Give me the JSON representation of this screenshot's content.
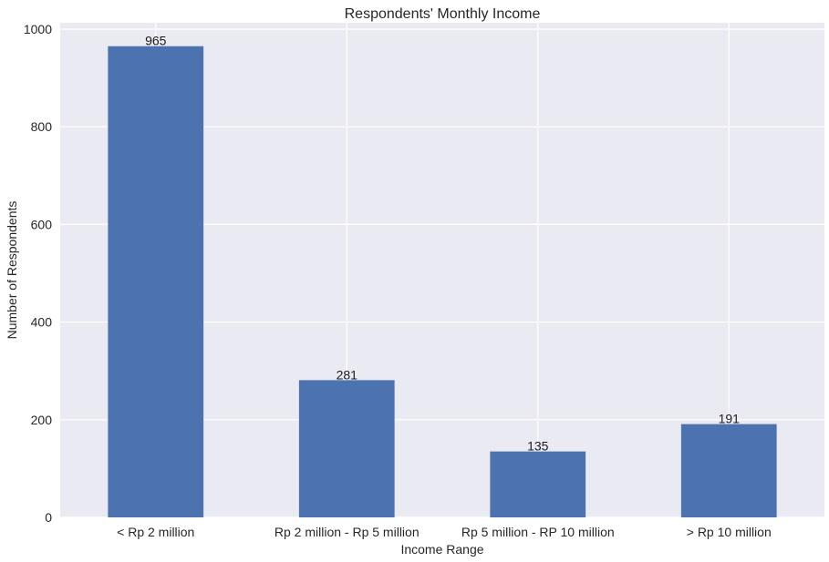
{
  "chart_data": {
    "type": "bar",
    "title": "Respondents' Monthly Income",
    "xlabel": "Income Range",
    "ylabel": "Number of Respondents",
    "categories": [
      "< Rp 2 million",
      "Rp 2 million - Rp 5 million",
      "Rp 5 million - RP 10 million",
      "> Rp 10 million"
    ],
    "values": [
      965,
      281,
      135,
      191
    ],
    "data_labels": [
      "965",
      "281",
      "135",
      "191"
    ],
    "yticks": [
      0,
      200,
      400,
      600,
      800,
      1000
    ],
    "ylim": [
      0,
      1013
    ],
    "grid": true,
    "bar_color": "#4c72b0",
    "plot_background": "#eaeaf2",
    "grid_color": "#ffffff"
  }
}
